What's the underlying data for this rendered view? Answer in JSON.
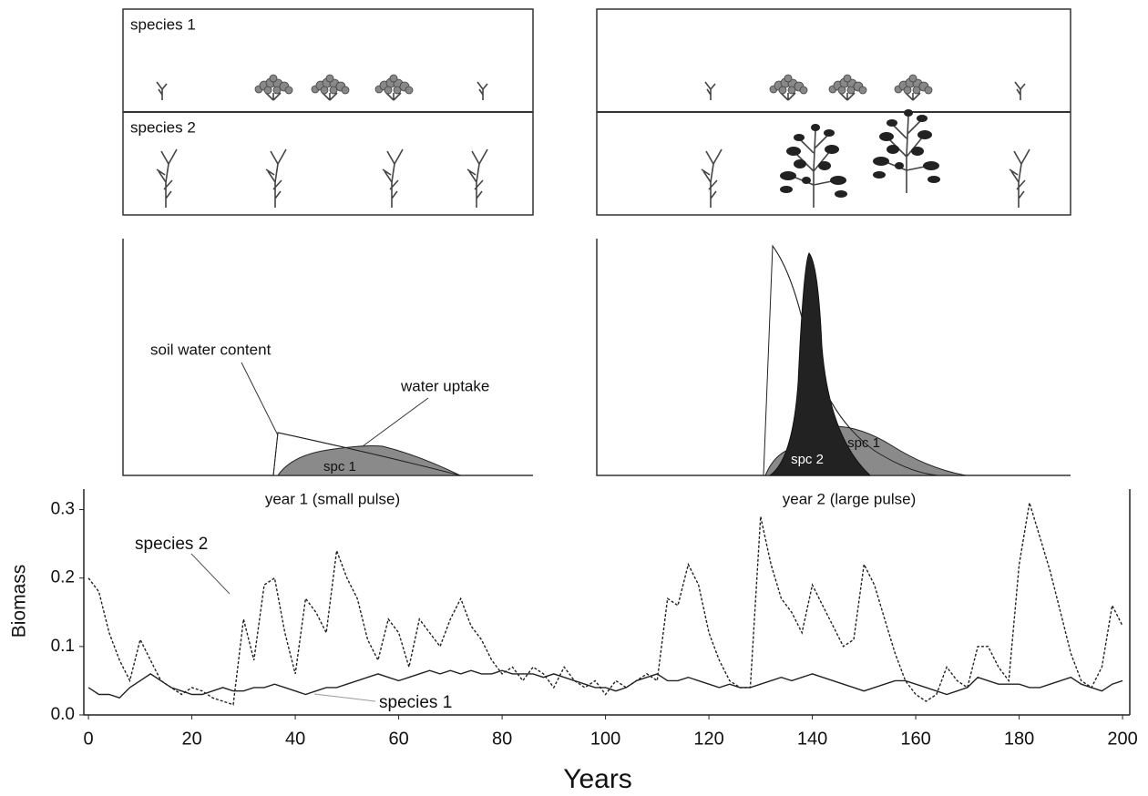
{
  "diagram": {
    "plants_panel": {
      "labels": [
        "species 1",
        "species 2"
      ]
    },
    "pulse_year_1": {
      "annotations": [
        "soil water content",
        "water uptake"
      ],
      "area_labels": [
        "spc 1"
      ],
      "caption": "year 1 (small pulse)"
    },
    "pulse_year_2": {
      "area_labels": [
        "spc 2",
        "spc 1"
      ],
      "caption": "year 2 (large pulse)"
    }
  },
  "chart_data": {
    "type": "line",
    "xlabel": "Years",
    "ylabel": "Biomass",
    "x": [
      0,
      2,
      4,
      6,
      8,
      10,
      12,
      14,
      16,
      18,
      20,
      22,
      24,
      26,
      28,
      30,
      32,
      34,
      36,
      38,
      40,
      42,
      44,
      46,
      48,
      50,
      52,
      54,
      56,
      58,
      60,
      62,
      64,
      66,
      68,
      70,
      72,
      74,
      76,
      78,
      80,
      82,
      84,
      86,
      88,
      90,
      92,
      94,
      96,
      98,
      100,
      102,
      104,
      106,
      108,
      110,
      112,
      114,
      116,
      118,
      120,
      122,
      124,
      126,
      128,
      130,
      132,
      134,
      136,
      138,
      140,
      142,
      144,
      146,
      148,
      150,
      152,
      154,
      156,
      158,
      160,
      162,
      164,
      166,
      168,
      170,
      172,
      174,
      176,
      178,
      180,
      182,
      184,
      186,
      188,
      190,
      192,
      194,
      196,
      198,
      200
    ],
    "series": [
      {
        "name": "species 2",
        "color": "#222222",
        "style": "dashed",
        "values": [
          0.2,
          0.18,
          0.12,
          0.08,
          0.05,
          0.11,
          0.08,
          0.05,
          0.04,
          0.03,
          0.04,
          0.035,
          0.025,
          0.02,
          0.015,
          0.14,
          0.08,
          0.19,
          0.2,
          0.12,
          0.06,
          0.17,
          0.15,
          0.12,
          0.24,
          0.2,
          0.17,
          0.11,
          0.08,
          0.14,
          0.12,
          0.07,
          0.14,
          0.12,
          0.1,
          0.14,
          0.17,
          0.13,
          0.11,
          0.08,
          0.06,
          0.07,
          0.05,
          0.07,
          0.06,
          0.04,
          0.07,
          0.05,
          0.04,
          0.05,
          0.03,
          0.05,
          0.04,
          0.05,
          0.06,
          0.05,
          0.17,
          0.16,
          0.22,
          0.19,
          0.12,
          0.08,
          0.05,
          0.04,
          0.04,
          0.29,
          0.22,
          0.17,
          0.15,
          0.12,
          0.19,
          0.16,
          0.13,
          0.1,
          0.11,
          0.22,
          0.19,
          0.14,
          0.09,
          0.05,
          0.03,
          0.02,
          0.03,
          0.07,
          0.05,
          0.04,
          0.1,
          0.1,
          0.07,
          0.05,
          0.22,
          0.31,
          0.26,
          0.21,
          0.15,
          0.09,
          0.05,
          0.04,
          0.07,
          0.16,
          0.13
        ]
      },
      {
        "name": "species 1",
        "color": "#222222",
        "style": "solid",
        "values": [
          0.04,
          0.03,
          0.03,
          0.025,
          0.04,
          0.05,
          0.06,
          0.05,
          0.04,
          0.035,
          0.03,
          0.03,
          0.035,
          0.04,
          0.035,
          0.035,
          0.04,
          0.04,
          0.045,
          0.04,
          0.035,
          0.03,
          0.035,
          0.04,
          0.04,
          0.045,
          0.05,
          0.055,
          0.06,
          0.055,
          0.05,
          0.055,
          0.06,
          0.065,
          0.06,
          0.065,
          0.06,
          0.065,
          0.06,
          0.06,
          0.065,
          0.06,
          0.06,
          0.06,
          0.055,
          0.06,
          0.055,
          0.05,
          0.045,
          0.04,
          0.04,
          0.035,
          0.04,
          0.05,
          0.055,
          0.06,
          0.05,
          0.05,
          0.055,
          0.05,
          0.045,
          0.04,
          0.045,
          0.04,
          0.04,
          0.045,
          0.05,
          0.055,
          0.05,
          0.055,
          0.06,
          0.055,
          0.05,
          0.045,
          0.04,
          0.035,
          0.04,
          0.045,
          0.05,
          0.05,
          0.045,
          0.04,
          0.035,
          0.03,
          0.035,
          0.04,
          0.055,
          0.05,
          0.045,
          0.045,
          0.045,
          0.04,
          0.04,
          0.045,
          0.05,
          0.055,
          0.045,
          0.04,
          0.035,
          0.045,
          0.05
        ]
      }
    ],
    "xlim": [
      -0.9,
      201.4
    ],
    "ylim": [
      0,
      0.33
    ],
    "xticks": [
      0,
      20,
      40,
      60,
      80,
      100,
      120,
      140,
      160,
      180,
      200
    ],
    "yticks": [
      {
        "value": 0,
        "label": "0.0"
      },
      0.1,
      0.2,
      0.3
    ]
  }
}
